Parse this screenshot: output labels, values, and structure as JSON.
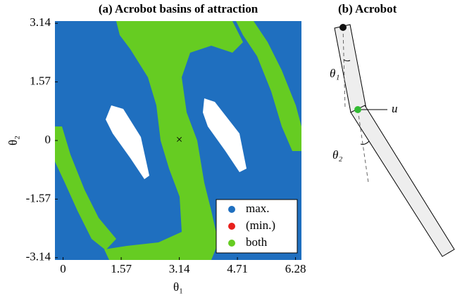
{
  "chart_data": {
    "type": "scatter",
    "title": "(a) Acrobot basins of attraction",
    "xlabel": "θ₁",
    "ylabel": "θ₂",
    "xlim": [
      -0.22,
      6.44
    ],
    "ylim": [
      -3.2,
      3.2
    ],
    "xticks": [
      0,
      1.57,
      3.14,
      4.71,
      6.28
    ],
    "yticks": [
      -3.14,
      -1.57,
      0,
      1.57,
      3.14
    ],
    "series": [
      {
        "name": "max.",
        "color": "#1f6fbf"
      },
      {
        "name": "(min.)",
        "color": "#e8201c"
      },
      {
        "name": "both",
        "color": "#66cc22"
      }
    ],
    "marker": {
      "x": 3.14,
      "y": 0,
      "label": "×"
    },
    "legend": "lower right"
  },
  "diagram": {
    "title": "(b) Acrobot",
    "theta1": "θ₁",
    "theta2": "θ₂",
    "u": "u"
  }
}
